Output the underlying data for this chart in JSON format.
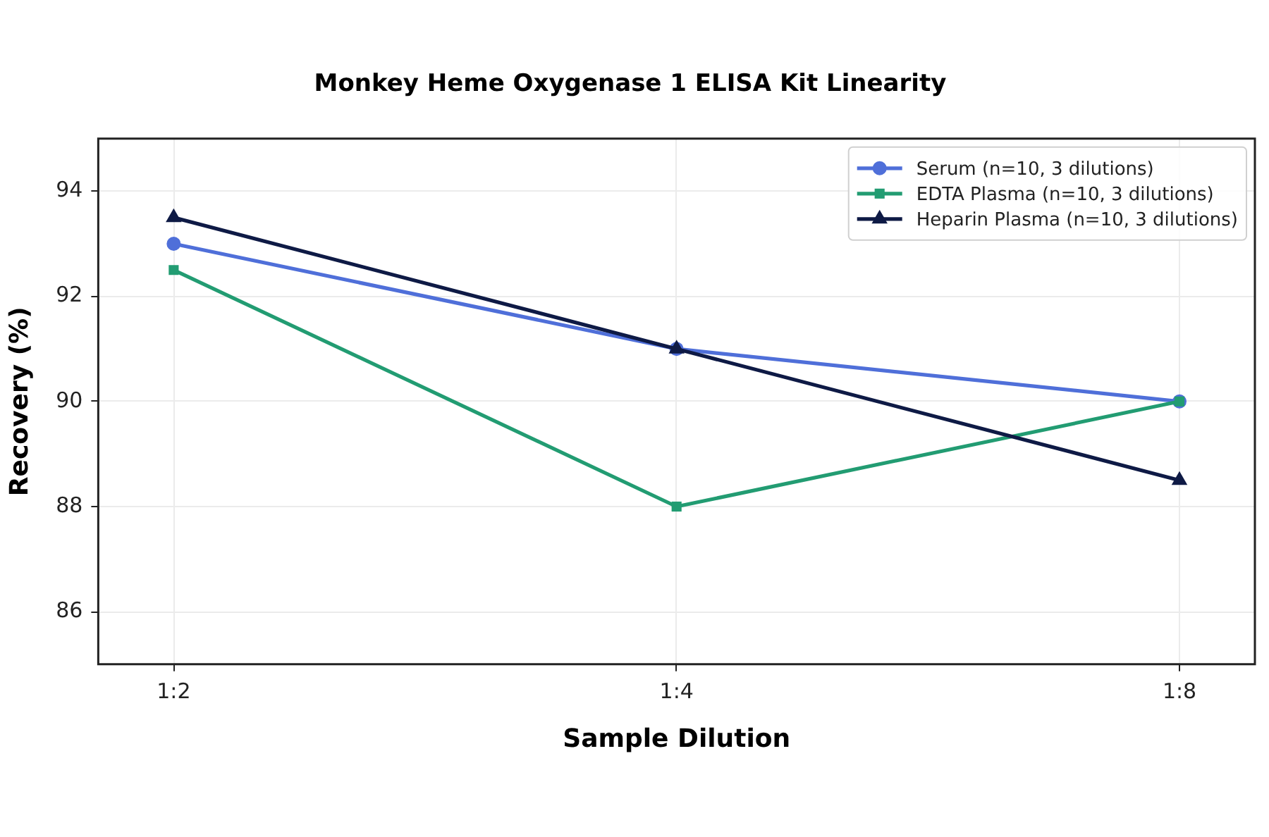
{
  "chart_data": {
    "type": "line",
    "title": "Monkey Heme Oxygenase 1 ELISA Kit Linearity",
    "xlabel": "Sample Dilution",
    "ylabel": "Recovery (%)",
    "categories": [
      "1:2",
      "1:4",
      "1:8"
    ],
    "series": [
      {
        "name": "Serum (n=10, 3 dilutions)",
        "color": "#4f6fd9",
        "values": [
          93,
          91,
          90
        ],
        "marker": "circle"
      },
      {
        "name": "EDTA Plasma (n=10, 3 dilutions)",
        "color": "#229c72",
        "values": [
          92.5,
          88,
          90
        ],
        "marker": "square"
      },
      {
        "name": "Heparin Plasma (n=10, 3 dilutions)",
        "color": "#0e1a45",
        "values": [
          93.5,
          91,
          88.5
        ],
        "marker": "triangle"
      }
    ],
    "ylim": [
      85,
      95
    ],
    "yticks": [
      86,
      88,
      90,
      92,
      94
    ],
    "grid": true,
    "legend": "top right",
    "line_style": "solid"
  }
}
